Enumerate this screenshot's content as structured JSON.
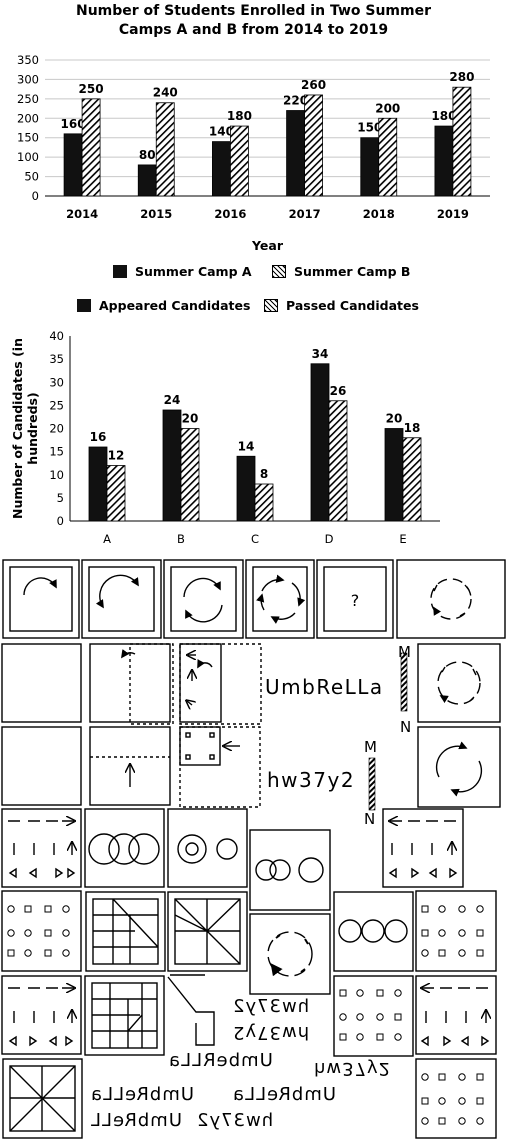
{
  "chart_data": [
    {
      "type": "bar",
      "title": "Number of Students Enrolled in Two Summer Camps A and B from 2014 to 2019",
      "title_lines": [
        "Number of Students Enrolled in Two Summer",
        "Camps A and B from 2014 to 2019"
      ],
      "categories": [
        "2014",
        "2015",
        "2016",
        "2017",
        "2018",
        "2019"
      ],
      "series": [
        {
          "name": "Summer Camp A",
          "values": [
            160,
            80,
            140,
            220,
            150,
            180
          ],
          "fill": "solid"
        },
        {
          "name": "Summer Camp B",
          "values": [
            250,
            240,
            180,
            260,
            200,
            280
          ],
          "fill": "hatch"
        }
      ],
      "xlabel": "Year",
      "ylabel": "",
      "ylim": [
        0,
        350
      ],
      "yticks": [
        0,
        50,
        100,
        150,
        200,
        250,
        300,
        350
      ],
      "grid": true,
      "legend": "bottom",
      "data_labels": true
    },
    {
      "type": "bar",
      "title": "",
      "categories": [
        "A",
        "B",
        "C",
        "D",
        "E"
      ],
      "series": [
        {
          "name": "Appeared Candidates",
          "values": [
            16,
            24,
            14,
            34,
            20
          ],
          "fill": "solid"
        },
        {
          "name": "Passed Candidates",
          "values": [
            12,
            20,
            8,
            26,
            18
          ],
          "fill": "hatch"
        }
      ],
      "xlabel": "",
      "ylabel": "Number of Candidates (in hundreds)",
      "ylabel_lines": [
        "Number of Candidates (in",
        "hundreds)"
      ],
      "ylim": [
        0,
        40
      ],
      "yticks": [
        0,
        5,
        10,
        15,
        20,
        25,
        30,
        35,
        40
      ],
      "grid": false,
      "legend": "top",
      "data_labels": true
    }
  ],
  "puzzles": {
    "question_mark": "?",
    "word_umbrella": "UmbReLLa",
    "word_hw37y2": "hw37y2",
    "mirror_label_top": "M",
    "mirror_label_bottom": "N",
    "mirror2_label_top": "M",
    "mirror2_label_bottom": "N",
    "mirror_options": [
      "hw37y2",
      "hw37y2",
      "UmbeRLLa",
      "hw37y2",
      "UmbReLLa",
      "UmbReLLa",
      "hw37y2",
      "UmbReLL"
    ]
  },
  "colors": {
    "bar_solid": "#111111",
    "hatch": "#000000",
    "background": "#ffffff"
  }
}
